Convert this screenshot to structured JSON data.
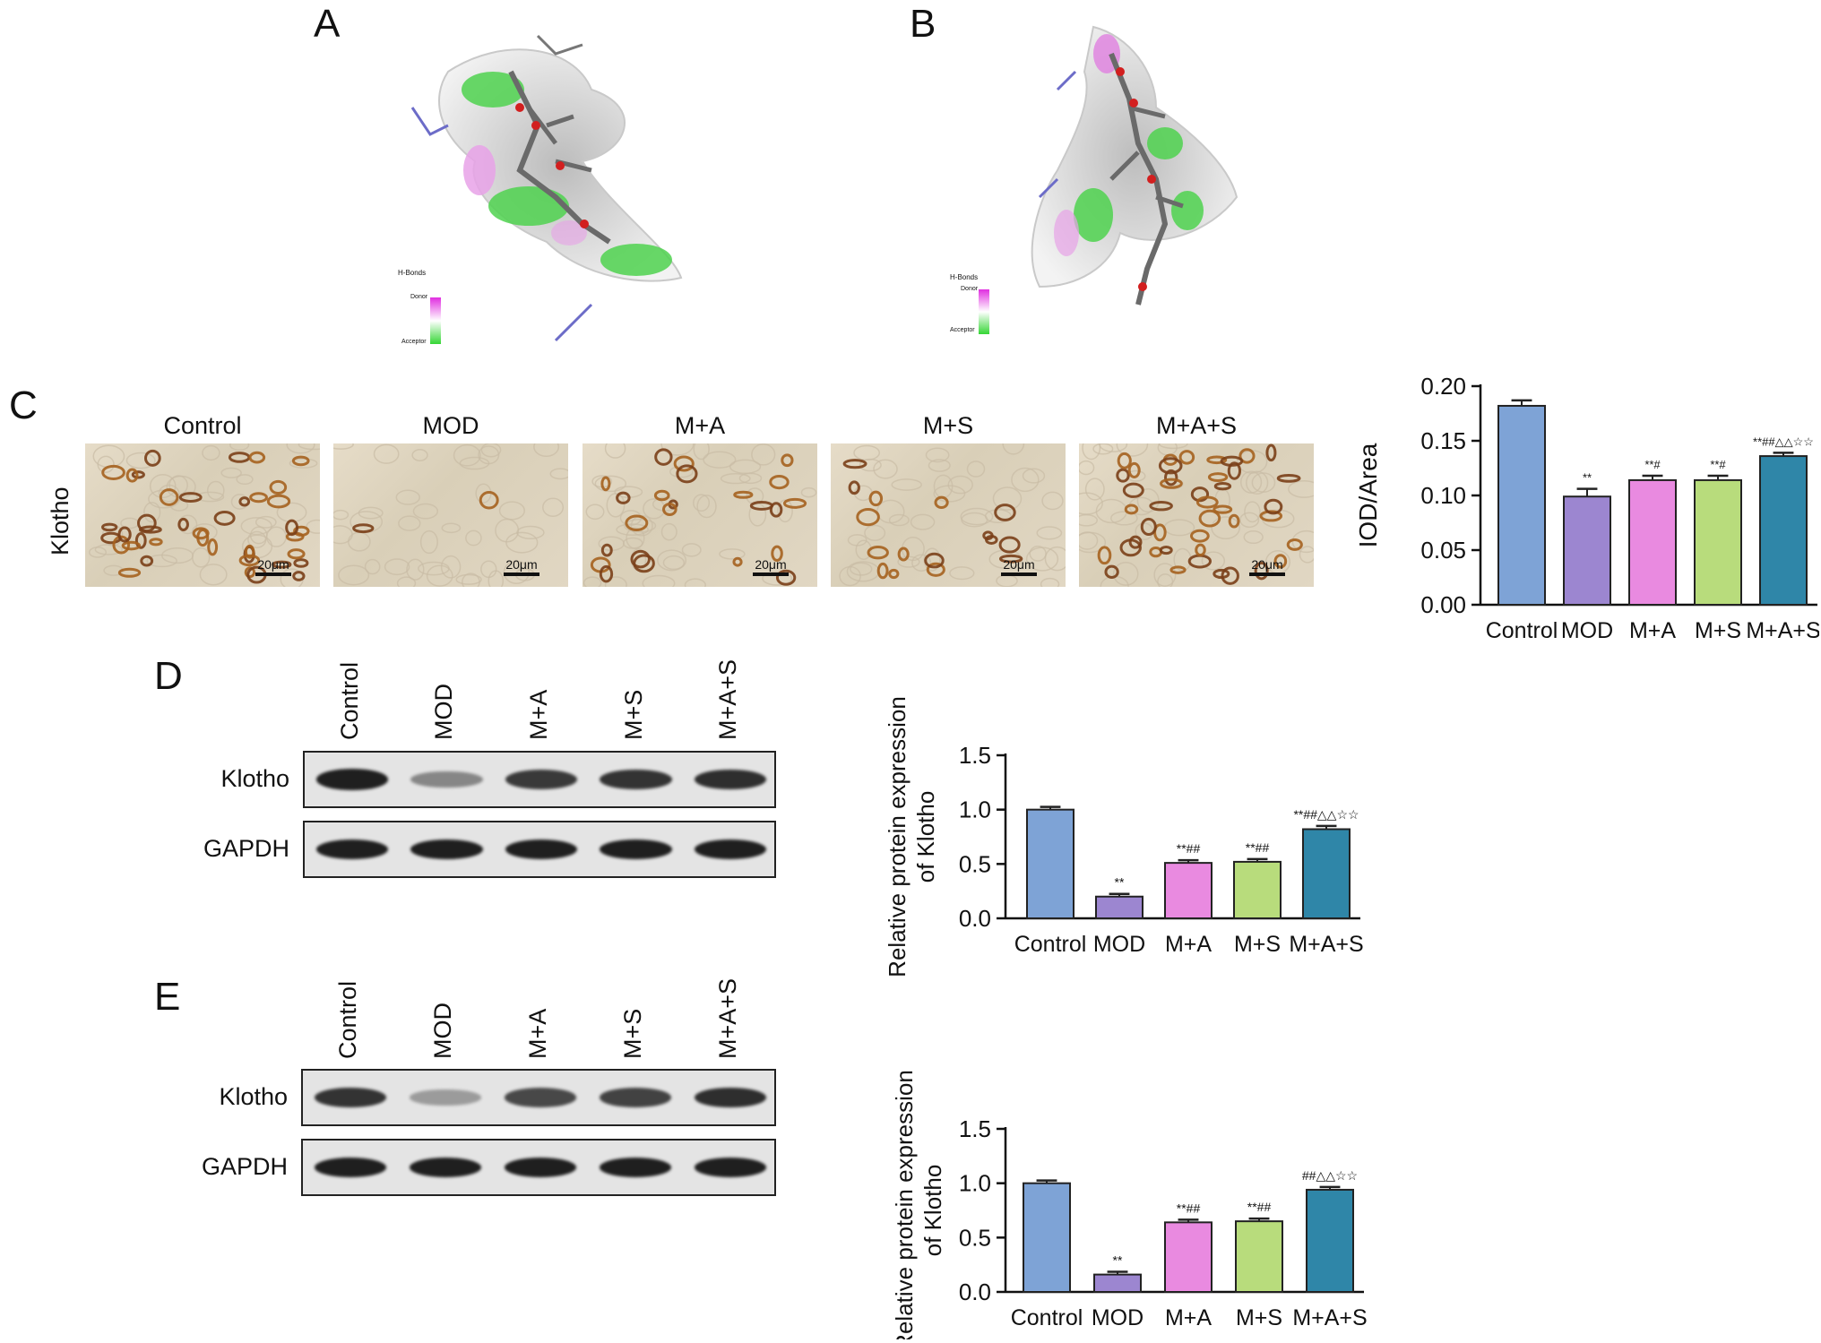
{
  "panels": {
    "A": {
      "letter": "A",
      "legend_title": "H-Bonds",
      "legend_donor": "Donor",
      "legend_acceptor": "Acceptor"
    },
    "B": {
      "letter": "B",
      "legend_title": "H-Bonds",
      "legend_donor": "Donor",
      "legend_acceptor": "Acceptor"
    },
    "C": {
      "letter": "C",
      "row_label": "Klotho",
      "images": [
        {
          "title": "Control",
          "scale": "20μm"
        },
        {
          "title": "MOD",
          "scale": "20μm"
        },
        {
          "title": "M+A",
          "scale": "20μm"
        },
        {
          "title": "M+S",
          "scale": "20μm"
        },
        {
          "title": "M+A+S",
          "scale": "20μm"
        }
      ]
    },
    "D": {
      "letter": "D",
      "lanes": [
        "Control",
        "MOD",
        "M+A",
        "M+S",
        "M+A+S"
      ],
      "blot_rows": [
        "Klotho",
        "GAPDH"
      ],
      "klotho_intensity": [
        0.95,
        0.45,
        0.82,
        0.85,
        0.88
      ]
    },
    "E": {
      "letter": "E",
      "lanes": [
        "Control",
        "MOD",
        "M+A",
        "M+S",
        "M+A+S"
      ],
      "blot_rows": [
        "Klotho",
        "GAPDH"
      ],
      "klotho_intensity": [
        0.85,
        0.35,
        0.75,
        0.78,
        0.88
      ]
    }
  },
  "colors": {
    "Control": "#7ea3d6",
    "MOD": "#9c86d0",
    "M+A": "#e98ae0",
    "M+S": "#b8dc7c",
    "M+A+S": "#2f86a8",
    "donor": "#e02ee0",
    "acceptor": "#35d635"
  },
  "chart_data": [
    {
      "id": "C",
      "type": "bar",
      "categories": [
        "Control",
        "MOD",
        "M+A",
        "M+S",
        "M+A+S"
      ],
      "values": [
        0.182,
        0.099,
        0.114,
        0.114,
        0.136
      ],
      "errors": [
        0.005,
        0.007,
        0.004,
        0.004,
        0.003
      ],
      "annotations": [
        "",
        "**",
        "**#",
        "**#",
        "**##△△☆☆"
      ],
      "title": "",
      "xlabel": "",
      "ylabel": "IOD/Area",
      "ylim": [
        0,
        0.2
      ],
      "yticks": [
        "0.00",
        "0.05",
        "0.10",
        "0.15",
        "0.20"
      ],
      "grid": false
    },
    {
      "id": "D",
      "type": "bar",
      "categories": [
        "Control",
        "MOD",
        "M+A",
        "M+S",
        "M+A+S"
      ],
      "values": [
        1.0,
        0.2,
        0.51,
        0.52,
        0.82
      ],
      "errors": [
        0.025,
        0.025,
        0.025,
        0.025,
        0.03
      ],
      "annotations": [
        "",
        "**",
        "**##",
        "**##",
        "**##△△☆☆"
      ],
      "title": "",
      "xlabel": "",
      "ylabel": [
        "Relative protein expression",
        "of Klotho"
      ],
      "ylim": [
        0,
        1.5
      ],
      "yticks": [
        "0.0",
        "0.5",
        "1.0",
        "1.5"
      ],
      "grid": false
    },
    {
      "id": "E",
      "type": "bar",
      "categories": [
        "Control",
        "MOD",
        "M+A",
        "M+S",
        "M+A+S"
      ],
      "values": [
        1.0,
        0.16,
        0.64,
        0.65,
        0.94
      ],
      "errors": [
        0.025,
        0.025,
        0.025,
        0.025,
        0.025
      ],
      "annotations": [
        "",
        "**",
        "**##",
        "**##",
        "##△△☆☆"
      ],
      "title": "",
      "xlabel": "",
      "ylabel": [
        "Relative protein expression",
        "of Klotho"
      ],
      "ylim": [
        0,
        1.5
      ],
      "yticks": [
        "0.0",
        "0.5",
        "1.0",
        "1.5"
      ],
      "grid": false
    }
  ]
}
